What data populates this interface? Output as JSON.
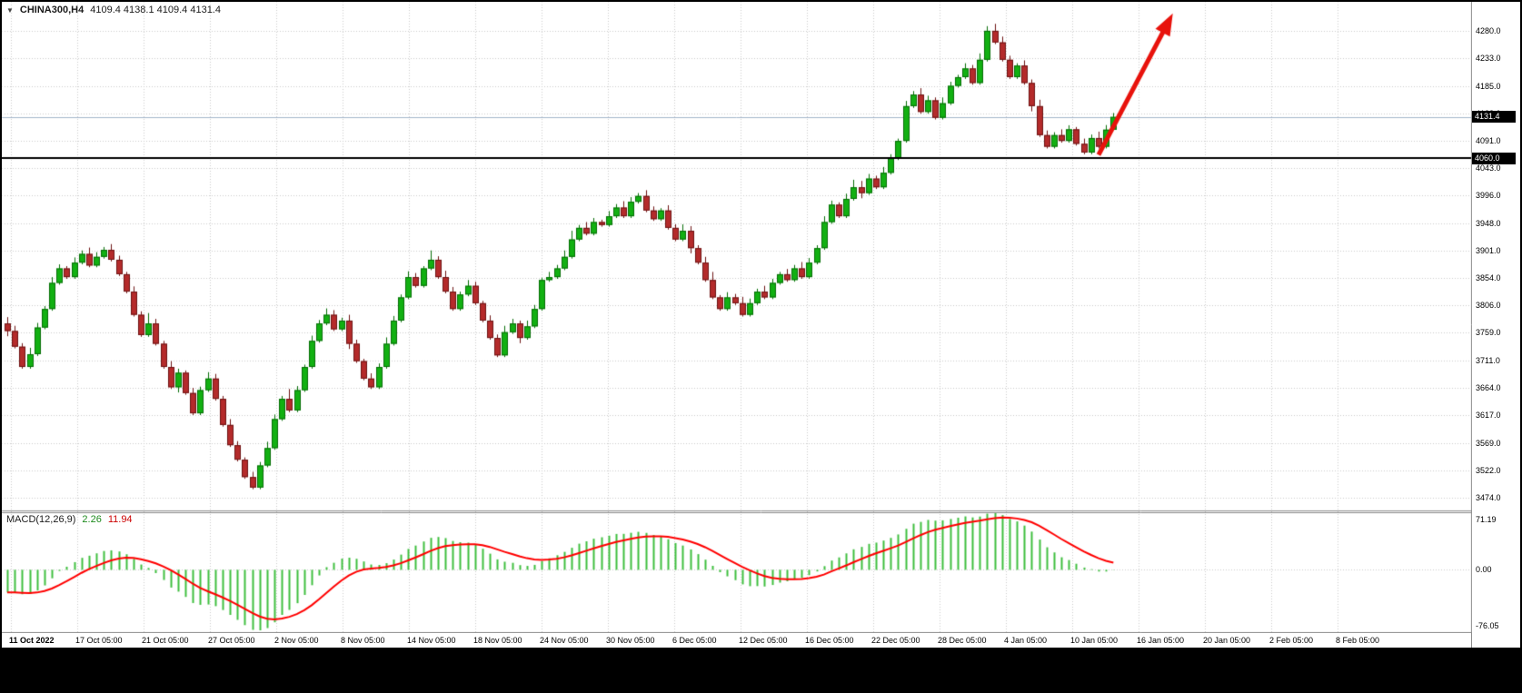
{
  "header": {
    "dropdown_icon": "▼",
    "symbol_period": "CHINA300,H4",
    "ohlc": "4109.4 4138.1 4109.4 4131.4"
  },
  "colors": {
    "background": "#FFFFFF",
    "grid": "#CDCDCD",
    "bull_body": "#12B012",
    "bull_border": "#076E07",
    "bear_body": "#B42B2B",
    "bear_border": "#6E1414",
    "bid_line": "#A5B8CC",
    "trend_line": "#000000",
    "arrow": "#E8120C",
    "macd_histogram": "#3FBF3F",
    "macd_signal": "#FF0000",
    "separator": "#8C8C8C",
    "marker_bg": "#000000",
    "marker_text": "#FFFFFF"
  },
  "chart_data": {
    "type": "candlestick",
    "symbol": "CHINA300",
    "timeframe": "H4",
    "title": "CHINA300,H4",
    "y_range": [
      3454,
      4330
    ],
    "y_ticks": [
      4280.0,
      4233.0,
      4185.0,
      4138.0,
      4091.0,
      4043.0,
      3996.0,
      3948.0,
      3901.0,
      3854.0,
      3806.0,
      3759.0,
      3711.0,
      3664.0,
      3617.0,
      3569.0,
      3522.0,
      3474.0
    ],
    "y_tick_labels": [
      "4280.0",
      "4233.0",
      "4185.0",
      "4138.0",
      "4091.0",
      "4043.0",
      "3996.0",
      "3948.0",
      "3901.0",
      "3854.0",
      "3806.0",
      "3759.0",
      "3711.0",
      "3664.0",
      "3617.0",
      "3569.0",
      "3522.0",
      "3474.0"
    ],
    "x_tick_labels": [
      "11 Oct 2022",
      "17 Oct 05:00",
      "21 Oct 05:00",
      "27 Oct 05:00",
      "2 Nov 05:00",
      "8 Nov 05:00",
      "14 Nov 05:00",
      "18 Nov 05:00",
      "24 Nov 05:00",
      "30 Nov 05:00",
      "6 Dec 05:00",
      "12 Dec 05:00",
      "16 Dec 05:00",
      "22 Dec 05:00",
      "28 Dec 05:00",
      "4 Jan 05:00",
      "10 Jan 05:00",
      "16 Jan 05:00",
      "20 Jan 05:00",
      "2 Feb 05:00",
      "8 Feb 05:00"
    ],
    "first_open": 3775,
    "closes": [
      3762,
      3735,
      3700,
      3722,
      3768,
      3800,
      3845,
      3870,
      3855,
      3880,
      3895,
      3875,
      3890,
      3902,
      3885,
      3860,
      3830,
      3790,
      3755,
      3775,
      3740,
      3700,
      3665,
      3690,
      3655,
      3620,
      3660,
      3680,
      3645,
      3600,
      3565,
      3540,
      3510,
      3492,
      3530,
      3560,
      3610,
      3645,
      3625,
      3660,
      3700,
      3745,
      3775,
      3790,
      3765,
      3780,
      3740,
      3710,
      3680,
      3665,
      3700,
      3740,
      3780,
      3820,
      3855,
      3840,
      3870,
      3885,
      3855,
      3830,
      3800,
      3825,
      3840,
      3810,
      3780,
      3750,
      3720,
      3760,
      3775,
      3750,
      3770,
      3800,
      3850,
      3855,
      3870,
      3890,
      3920,
      3940,
      3930,
      3950,
      3945,
      3960,
      3975,
      3960,
      3985,
      3995,
      3970,
      3955,
      3970,
      3940,
      3920,
      3935,
      3905,
      3880,
      3850,
      3820,
      3800,
      3820,
      3810,
      3790,
      3810,
      3830,
      3820,
      3845,
      3860,
      3850,
      3870,
      3855,
      3880,
      3905,
      3950,
      3980,
      3960,
      3990,
      4010,
      4000,
      4025,
      4010,
      4035,
      4060,
      4090,
      4150,
      4170,
      4140,
      4160,
      4130,
      4155,
      4185,
      4200,
      4215,
      4190,
      4230,
      4280,
      4260,
      4230,
      4200,
      4220,
      4190,
      4150,
      4100,
      4080,
      4100,
      4090,
      4110,
      4085,
      4070,
      4095,
      4080,
      4109.4,
      4131.4
    ],
    "last_candle": {
      "open": 4109.4,
      "high": 4138.1,
      "low": 4109.4,
      "close": 4131.4
    },
    "bid": {
      "label": "4131.4",
      "value": 4131.4
    },
    "hline": {
      "label": "4060.0",
      "value": 4060.0
    },
    "arrow": {
      "start_bar": 147,
      "start_price": 4066,
      "end_bar": 157,
      "end_price": 4310,
      "color": "#E8120C"
    },
    "indicator": {
      "type": "bar",
      "name": "MACD",
      "label": "MACD(12,26,9)",
      "macd_current": 2.26,
      "signal_current": 11.94,
      "y_ticks": [
        71.19,
        0.0,
        -76.05
      ],
      "y_tick_labels": [
        "71.19",
        "0.00",
        "-76.05"
      ]
    }
  }
}
